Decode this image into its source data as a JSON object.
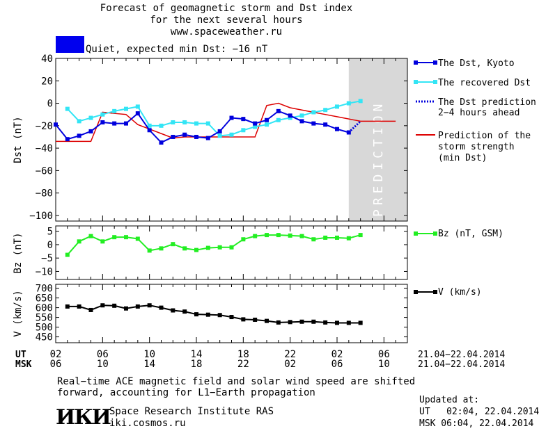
{
  "header": {
    "title_line1": "Forecast of geomagnetic storm and Dst index",
    "title_line2": "for the next several hours",
    "title_line3": "www.spaceweather.ru",
    "status_text": "Quiet, expected min Dst: −16 nT",
    "status_color": "#0000ee"
  },
  "colors": {
    "dst_kyoto": "#0000dd",
    "recovered": "#33e5f5",
    "prediction_line": "#dd0000",
    "bz": "#22ee22",
    "v": "#000000",
    "prediction_band": "#d8d8d8"
  },
  "chart_data": [
    {
      "type": "line",
      "ylabel": "Dst (nT)",
      "ylim": [
        -105,
        40
      ],
      "yticks": [
        40,
        20,
        0,
        -20,
        -40,
        -60,
        -80,
        -100
      ],
      "band_label": "PREDICTION",
      "series": [
        {
          "name": "The Dst, Kyoto",
          "x": [
            2,
            3,
            4,
            5,
            6,
            7,
            8,
            9,
            10,
            11,
            12,
            13,
            14,
            15,
            16,
            17,
            18,
            19,
            20,
            21,
            22,
            23,
            24,
            25,
            26,
            27
          ],
          "y": [
            -19,
            -32,
            -29,
            -25,
            -17,
            -18,
            -18,
            -9,
            -24,
            -35,
            -30,
            -28,
            -30,
            -31,
            -25,
            -13,
            -14,
            -18,
            -15,
            -7,
            -11,
            -16,
            -18,
            -19,
            -23,
            -26
          ]
        },
        {
          "name": "The recovered Dst",
          "x": [
            3,
            4,
            5,
            6,
            7,
            8,
            9,
            10,
            11,
            12,
            13,
            14,
            15,
            16,
            17,
            18,
            19,
            20,
            21,
            22,
            23,
            24,
            25,
            26,
            27,
            28
          ],
          "y": [
            -5,
            -16,
            -13,
            -10,
            -7,
            -5,
            -3,
            -20,
            -20,
            -17,
            -17,
            -18,
            -18,
            -29,
            -28,
            -24,
            -21,
            -19,
            -15,
            -13,
            -11,
            -8,
            -6,
            -3,
            0,
            2
          ]
        },
        {
          "name": "The Dst prediction 2–4 hours ahead",
          "x": [
            27,
            28
          ],
          "y": [
            -26,
            -16
          ]
        },
        {
          "name": "Prediction of the storm strength (min Dst)",
          "x": [
            2,
            4,
            5,
            6,
            7,
            8,
            9,
            10,
            11,
            12,
            13,
            14,
            15,
            16,
            17,
            18,
            19,
            20,
            21,
            22,
            23,
            24,
            25,
            26,
            27,
            28,
            31
          ],
          "y": [
            -34,
            -34,
            -34,
            -8,
            -9,
            -10,
            -19,
            -23,
            -27,
            -31,
            -30,
            -30,
            -30,
            -30,
            -30,
            -30,
            -30,
            -2,
            0,
            -4,
            -6,
            -8,
            -10,
            -12,
            -14,
            -16,
            -16
          ]
        }
      ]
    },
    {
      "type": "line",
      "ylabel": "Bz (nT)",
      "ylim": [
        -13,
        7
      ],
      "yticks": [
        5,
        0,
        -5,
        -10
      ],
      "series": [
        {
          "name": "Bz (nT, GSM)",
          "x": [
            3,
            4,
            5,
            6,
            7,
            8,
            9,
            10,
            11,
            12,
            13,
            14,
            15,
            16,
            17,
            18,
            19,
            20,
            21,
            22,
            23,
            24,
            25,
            26,
            27,
            28
          ],
          "y": [
            -3.8,
            1.2,
            3.2,
            1.2,
            2.8,
            2.8,
            2.2,
            -2.2,
            -1.4,
            0.2,
            -1.4,
            -2.0,
            -1.2,
            -1.0,
            -1.0,
            2.0,
            3.2,
            3.6,
            3.6,
            3.4,
            3.2,
            2.0,
            2.6,
            2.6,
            2.4,
            3.6
          ]
        }
      ]
    },
    {
      "type": "line",
      "ylabel": "V (km/s)",
      "ylim": [
        420,
        720
      ],
      "yticks": [
        700,
        650,
        600,
        550,
        500,
        450
      ],
      "series": [
        {
          "name": "V (km/s)",
          "x": [
            3,
            4,
            5,
            6,
            7,
            8,
            9,
            10,
            11,
            12,
            13,
            14,
            15,
            16,
            17,
            18,
            19,
            20,
            21,
            22,
            23,
            24,
            25,
            26,
            27,
            28
          ],
          "y": [
            606,
            606,
            588,
            612,
            610,
            596,
            606,
            612,
            600,
            586,
            580,
            566,
            564,
            562,
            552,
            540,
            538,
            532,
            524,
            526,
            528,
            528,
            524,
            522,
            522,
            522
          ]
        }
      ]
    }
  ],
  "x_axis": {
    "prediction_start": 27,
    "xlim": [
      2,
      32
    ],
    "ut_label": "UT",
    "msk_label": "MSK",
    "ut_ticks": [
      "02",
      "06",
      "10",
      "14",
      "18",
      "22",
      "02",
      "06"
    ],
    "msk_ticks": [
      "06",
      "10",
      "14",
      "18",
      "22",
      "02",
      "06",
      "10"
    ],
    "date_range_ut": "21.04−22.04.2014",
    "date_range_msk": "21.04−22.04.2014"
  },
  "legend": {
    "dst_kyoto": "The Dst, Kyoto",
    "recovered": "The recovered Dst",
    "prediction_line1": "The Dst prediction",
    "prediction_line2": "2−4 hours ahead",
    "strength_line1": "Prediction of the",
    "strength_line2": "storm strength",
    "strength_line3": "(min Dst)",
    "bz": "Bz (nT, GSM)",
    "v": "V (km/s)"
  },
  "footer": {
    "note_line1": "Real−time ACE magnetic field and solar wind speed are shifted",
    "note_line2": "forward, accounting for L1−Earth propagation",
    "logo_text": "ИКИ",
    "institute": "Space Research Institute RAS",
    "url": "iki.cosmos.ru",
    "updated_label": "Updated at:",
    "updated_ut": "UT   02:04, 22.04.2014",
    "updated_msk": "MSK 06:04, 22.04.2014"
  }
}
